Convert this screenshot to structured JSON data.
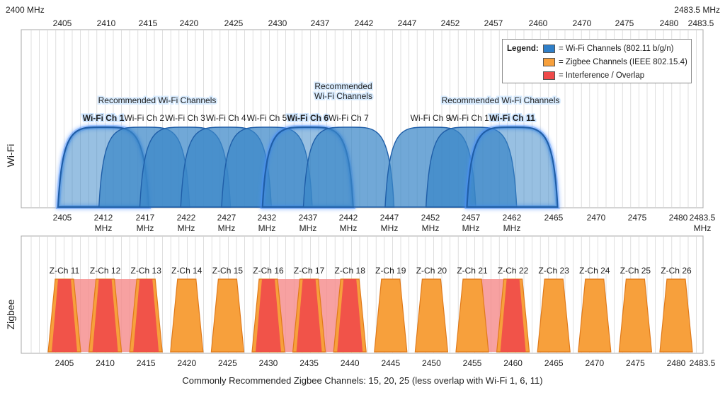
{
  "wifi_panel": {
    "axis_label": "Wi-Fi",
    "top_left_label": "2400 MHz",
    "top_right_label": "2483.5 MHz",
    "top_ticks": [
      "2405",
      "2410",
      "2415",
      "2420",
      "2425",
      "2430",
      "2437",
      "2442",
      "2447",
      "2452",
      "2457",
      "2460",
      "2470",
      "2475",
      "2480",
      "2483.5"
    ],
    "bottom_ticks": [
      {
        "value": "2405",
        "unit": ""
      },
      {
        "value": "2412",
        "unit": "MHz"
      },
      {
        "value": "2417",
        "unit": "MHz"
      },
      {
        "value": "2422",
        "unit": "MHz"
      },
      {
        "value": "2427",
        "unit": "MHz"
      },
      {
        "value": "2432",
        "unit": "MHz"
      },
      {
        "value": "2437",
        "unit": "MHz"
      },
      {
        "value": "2442",
        "unit": "MHz"
      },
      {
        "value": "2447",
        "unit": "MHz"
      },
      {
        "value": "2452",
        "unit": "MHz"
      },
      {
        "value": "2457",
        "unit": "MHz"
      },
      {
        "value": "2462",
        "unit": "MHz"
      },
      {
        "value": "2465",
        "unit": ""
      },
      {
        "value": "2470",
        "unit": ""
      },
      {
        "value": "2475",
        "unit": ""
      },
      {
        "value": "2480",
        "unit": ""
      },
      {
        "value": "2483.5",
        "unit": "MHz"
      }
    ],
    "channels": [
      {
        "label": "Wi-Fi Ch 1",
        "center_mhz": 2412,
        "recommended": true
      },
      {
        "label": "Wi-Fi Ch 2",
        "center_mhz": 2417,
        "recommended": false
      },
      {
        "label": "Wi-Fi Ch 3",
        "center_mhz": 2422,
        "recommended": false
      },
      {
        "label": "Wi-Fi Ch 4",
        "center_mhz": 2427,
        "recommended": false
      },
      {
        "label": "Wi-Fi Ch 5",
        "center_mhz": 2432,
        "recommended": false
      },
      {
        "label": "Wi-Fi Ch 6",
        "center_mhz": 2437,
        "recommended": true
      },
      {
        "label": "Wi-Fi Ch 7",
        "center_mhz": 2442,
        "recommended": false
      },
      {
        "label": "Wi-Fi Ch 9",
        "center_mhz": 2452,
        "recommended": false
      },
      {
        "label": "Wi-Fi Ch 10",
        "center_mhz": 2457,
        "recommended": false
      },
      {
        "label": "Wi-Fi Ch 11",
        "center_mhz": 2462,
        "recommended": true
      }
    ],
    "recommended_labels": [
      {
        "lines": [
          "Recommended Wi-Fi Channels"
        ]
      },
      {
        "lines": [
          "Recommended",
          "Wi-Fi Channels"
        ]
      },
      {
        "lines": [
          "Recommended Wi-Fi Channels"
        ]
      }
    ]
  },
  "legend": {
    "title": "Legend:",
    "items": [
      {
        "label": "= Wi-Fi Channels (802.11 b/g/n)",
        "color": "#2f7fc8"
      },
      {
        "label": "= Zigbee Channels (IEEE 802.15.4)",
        "color": "#f7a03c"
      },
      {
        "label": "= Interference / Overlap",
        "color": "#ef4a4a"
      }
    ]
  },
  "zigbee_panel": {
    "axis_label": "Zigbee",
    "channels": [
      {
        "label": "Z-Ch 11",
        "center_mhz": 2405,
        "interference": true
      },
      {
        "label": "Z-Ch 12",
        "center_mhz": 2410,
        "interference": true
      },
      {
        "label": "Z-Ch 13",
        "center_mhz": 2415,
        "interference": true
      },
      {
        "label": "Z-Ch 14",
        "center_mhz": 2420,
        "interference": false
      },
      {
        "label": "Z-Ch 15",
        "center_mhz": 2425,
        "interference": false
      },
      {
        "label": "Z-Ch 16",
        "center_mhz": 2430,
        "interference": true
      },
      {
        "label": "Z-Ch 17",
        "center_mhz": 2435,
        "interference": true
      },
      {
        "label": "Z-Ch 18",
        "center_mhz": 2440,
        "interference": true
      },
      {
        "label": "Z-Ch 19",
        "center_mhz": 2445,
        "interference": false
      },
      {
        "label": "Z-Ch 20",
        "center_mhz": 2450,
        "interference": false
      },
      {
        "label": "Z-Ch 21",
        "center_mhz": 2455,
        "interference": false
      },
      {
        "label": "Z-Ch 22",
        "center_mhz": 2460,
        "interference": true
      },
      {
        "label": "Z-Ch 23",
        "center_mhz": 2465,
        "interference": false
      },
      {
        "label": "Z-Ch 24",
        "center_mhz": 2470,
        "interference": false
      },
      {
        "label": "Z-Ch 25",
        "center_mhz": 2475,
        "interference": false
      },
      {
        "label": "Z-Ch 26",
        "center_mhz": 2480,
        "interference": false
      }
    ],
    "bottom_ticks": [
      "2405",
      "2410",
      "2415",
      "2420",
      "2425",
      "2430",
      "2435",
      "2440",
      "2445",
      "2450",
      "2455",
      "2460",
      "2465",
      "2470",
      "2475",
      "2480",
      "2483.5"
    ],
    "footer": "Commonly Recommended Zigbee Channels: 15, 20, 25 (less overlap with Wi-Fi 1, 6, 11)"
  },
  "colors": {
    "wifi_fill": "#3a86c8",
    "wifi_edge": "#1f5ea8",
    "wifi_glow": "#4a8fff",
    "zigbee_fill": "#f7a03c",
    "zigbee_edge": "#e07a1a",
    "interference": "#ef4a4a",
    "overlap_band": "#f58a8a",
    "grid": "#d2d2d2"
  }
}
